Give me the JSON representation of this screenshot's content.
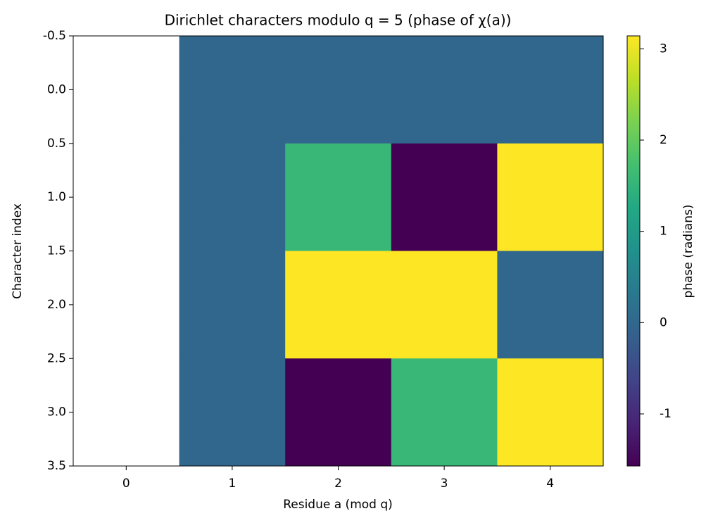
{
  "chart_data": {
    "type": "heatmap",
    "title": "Dirichlet characters modulo q = 5 (phase of χ(a))",
    "x_label": "Residue a (mod q)",
    "y_label": "Character index",
    "x": [
      0,
      1,
      2,
      3,
      4
    ],
    "y": [
      0,
      1,
      2,
      3
    ],
    "z": [
      [
        null,
        0,
        0,
        0,
        0
      ],
      [
        null,
        0,
        1.5708,
        -1.5708,
        3.1416
      ],
      [
        null,
        0,
        3.1416,
        3.1416,
        0
      ],
      [
        null,
        0,
        -1.5708,
        1.5708,
        3.1416
      ]
    ],
    "xlim": [
      -0.5,
      4.5
    ],
    "xticks": [
      0,
      1,
      2,
      3,
      4
    ],
    "ylim": [
      3.5,
      -0.5
    ],
    "yticks": [
      {
        "value": -0.5,
        "label": "-0.5"
      },
      {
        "value": 0,
        "label": "0.0"
      },
      {
        "value": 0.5,
        "label": "0.5"
      },
      {
        "value": 1,
        "label": "1.0"
      },
      {
        "value": 1.5,
        "label": "1.5"
      },
      {
        "value": 2,
        "label": "2.0"
      },
      {
        "value": 2.5,
        "label": "2.5"
      },
      {
        "value": 3,
        "label": "3.0"
      },
      {
        "value": 3.5,
        "label": "3.5"
      }
    ],
    "colormap": "viridis",
    "clim": [
      -1.5708,
      3.1416
    ],
    "colorbar_ticks": [
      -1,
      0,
      1,
      2,
      3
    ],
    "colorbar_label": "phase (radians)"
  }
}
